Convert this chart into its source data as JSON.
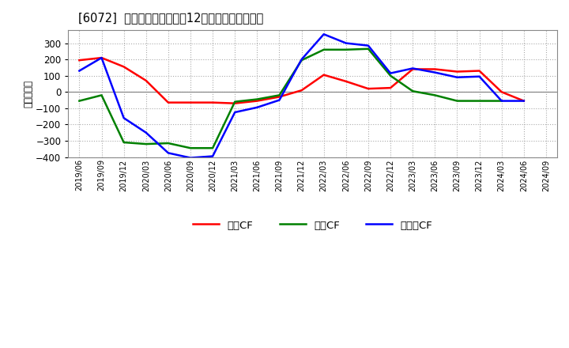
{
  "title": "[6072]  キャッシュフローの12か月移動合計の推移",
  "ylabel": "（百万円）",
  "background_color": "#ffffff",
  "plot_bg_color": "#ffffff",
  "grid_color": "#aaaaaa",
  "ylim": [
    -400,
    380
  ],
  "yticks": [
    -400,
    -300,
    -200,
    -100,
    0,
    100,
    200,
    300
  ],
  "x_labels": [
    "2019/06",
    "2019/09",
    "2019/12",
    "2020/03",
    "2020/06",
    "2020/09",
    "2020/12",
    "2021/03",
    "2021/06",
    "2021/09",
    "2021/12",
    "2022/03",
    "2022/06",
    "2022/09",
    "2022/12",
    "2023/03",
    "2023/06",
    "2023/09",
    "2023/12",
    "2024/03",
    "2024/06",
    "2024/09"
  ],
  "eigyo_cf": [
    195,
    210,
    155,
    70,
    -65,
    -65,
    -65,
    -70,
    -55,
    -30,
    10,
    105,
    65,
    20,
    25,
    140,
    140,
    125,
    130,
    0,
    -55,
    null
  ],
  "toshi_cf": [
    -55,
    -20,
    -310,
    -320,
    -315,
    -345,
    -345,
    -60,
    -45,
    -20,
    195,
    260,
    260,
    265,
    100,
    5,
    -20,
    -55,
    -55,
    -55,
    null,
    null
  ],
  "free_cf": [
    130,
    210,
    -160,
    -250,
    -375,
    -405,
    -395,
    -125,
    -95,
    -50,
    200,
    355,
    300,
    285,
    115,
    145,
    120,
    90,
    95,
    -55,
    -55,
    null
  ],
  "eigyo_color": "#ff0000",
  "toshi_color": "#008000",
  "free_color": "#0000ff",
  "line_width": 1.8,
  "legend_labels": [
    "営業CF",
    "投資CF",
    "フリーCF"
  ]
}
